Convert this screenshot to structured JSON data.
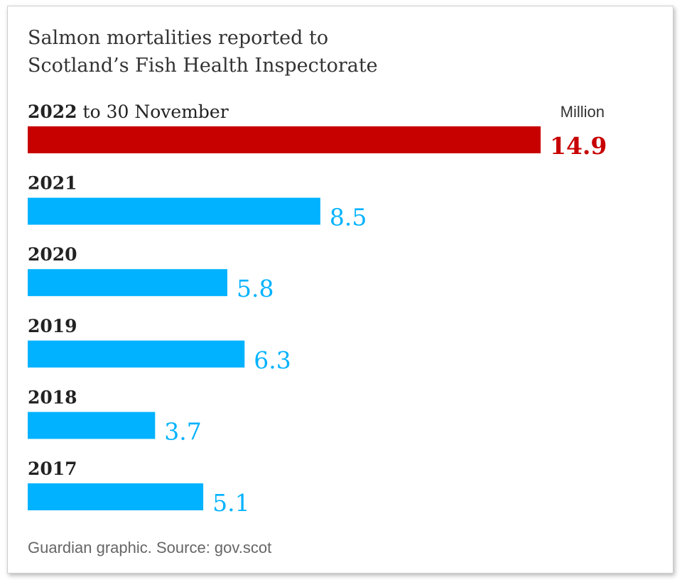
{
  "chart_data": {
    "type": "bar",
    "orientation": "horizontal",
    "title_lines": [
      "Salmon mortalities reported to",
      "Scotland’s Fish Health Inspectorate"
    ],
    "unit_label": "Million",
    "categories": [
      {
        "label_bold": "2022",
        "label_rest": " to 30 November"
      },
      {
        "label_bold": "2021",
        "label_rest": ""
      },
      {
        "label_bold": "2020",
        "label_rest": ""
      },
      {
        "label_bold": "2019",
        "label_rest": ""
      },
      {
        "label_bold": "2018",
        "label_rest": ""
      },
      {
        "label_bold": "2017",
        "label_rest": ""
      }
    ],
    "values": [
      14.9,
      8.5,
      5.8,
      6.3,
      3.7,
      5.1
    ],
    "value_labels": [
      "14.9",
      "8.5",
      "5.8",
      "6.3",
      "3.7",
      "5.1"
    ],
    "xlim": [
      0,
      14.9
    ],
    "grid": false,
    "colors": {
      "highlight": "#c70000",
      "bar": "#00b2ff"
    },
    "highlight_index": 0,
    "source": "Guardian graphic. Source: gov.scot"
  }
}
